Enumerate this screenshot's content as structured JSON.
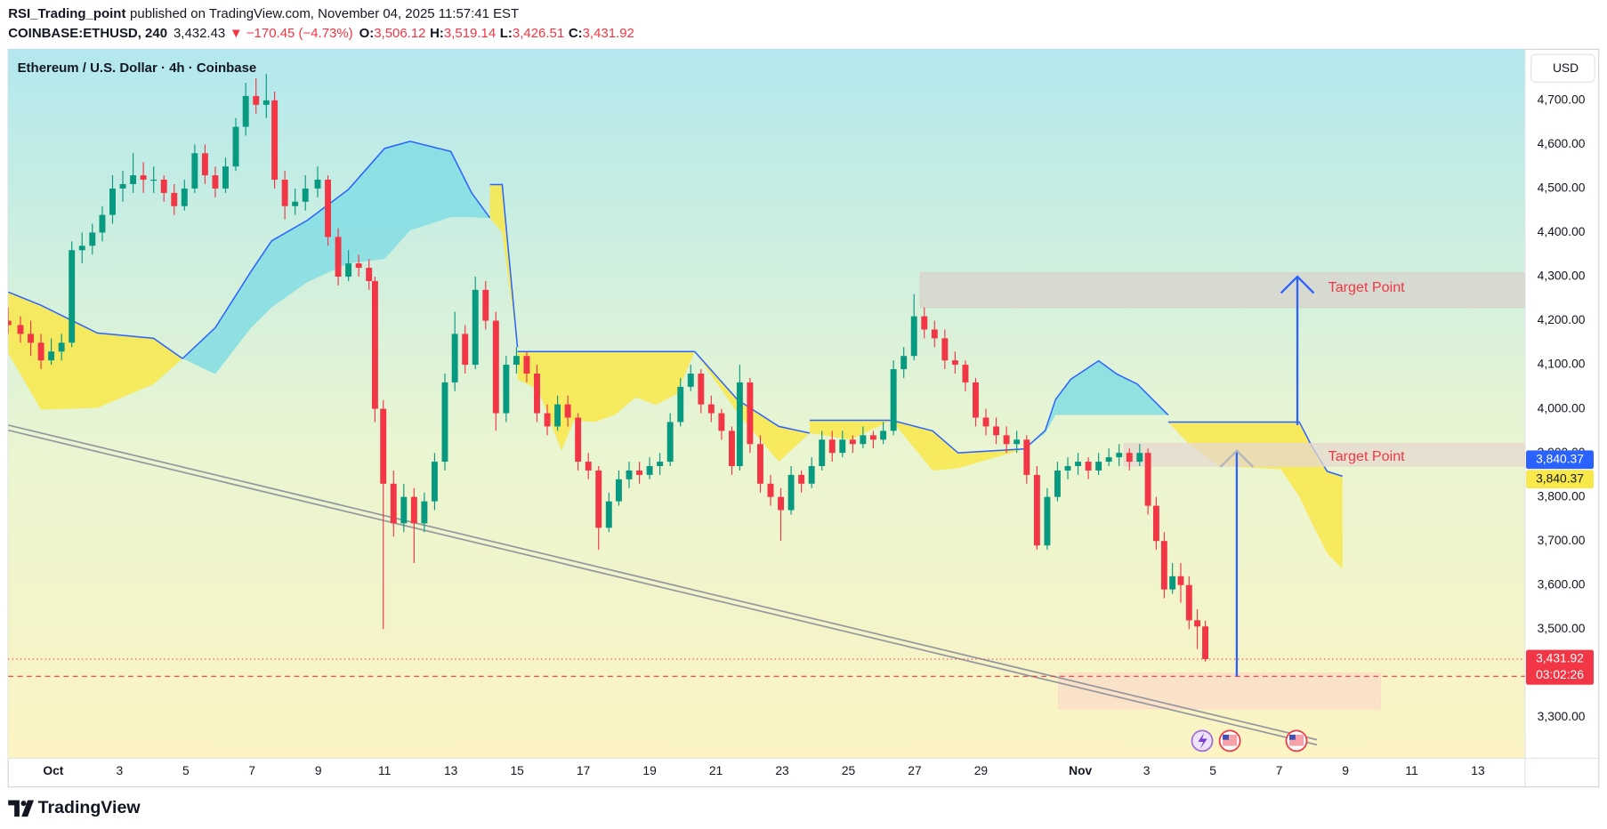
{
  "header": {
    "author": "RSI_Trading_point",
    "published": "published on TradingView.com, November 04, 2025 11:57:41 EST",
    "symbol": "COINBASE:ETHUSD, 240",
    "last": "3,432.43",
    "change": "▼ −170.45 (−4.73%)",
    "ohlc": [
      {
        "key": "O:",
        "value": "3,506.12"
      },
      {
        "key": "H:",
        "value": "3,519.14"
      },
      {
        "key": "L:",
        "value": "3,426.51"
      },
      {
        "key": "C:",
        "value": "3,431.92"
      }
    ]
  },
  "currency": "USD",
  "footer": {
    "brand": "TradingView"
  },
  "chart_data": {
    "type": "candlestick",
    "title": "Ethereum / U.S. Dollar · 4h · Coinbase",
    "up_color": "#089981",
    "down_color": "#f23645",
    "xlim": [
      -1.36,
      44.42
    ],
    "ylim": [
      3207,
      4816
    ],
    "grid": false,
    "xticks": [
      {
        "value": 0,
        "label": "Oct"
      },
      {
        "value": 2,
        "label": "3"
      },
      {
        "value": 4,
        "label": "5"
      },
      {
        "value": 6,
        "label": "7"
      },
      {
        "value": 8,
        "label": "9"
      },
      {
        "value": 10,
        "label": "11"
      },
      {
        "value": 12,
        "label": "13"
      },
      {
        "value": 14,
        "label": "15"
      },
      {
        "value": 16,
        "label": "17"
      },
      {
        "value": 18,
        "label": "19"
      },
      {
        "value": 20,
        "label": "21"
      },
      {
        "value": 22,
        "label": "23"
      },
      {
        "value": 24,
        "label": "25"
      },
      {
        "value": 26,
        "label": "27"
      },
      {
        "value": 28,
        "label": "29"
      },
      {
        "value": 31,
        "label": "Nov"
      },
      {
        "value": 33,
        "label": "3"
      },
      {
        "value": 35,
        "label": "5"
      },
      {
        "value": 37,
        "label": "7"
      },
      {
        "value": 39,
        "label": "9"
      },
      {
        "value": 41,
        "label": "11"
      },
      {
        "value": 43,
        "label": "13"
      }
    ],
    "yticks": [
      {
        "value": 3300,
        "label": "3,300.00"
      },
      {
        "value": 3500,
        "label": "3,500.00"
      },
      {
        "value": 3600,
        "label": "3,600.00"
      },
      {
        "value": 3700,
        "label": "3,700.00"
      },
      {
        "value": 3800,
        "label": "3,800.00"
      },
      {
        "value": 3900,
        "label": "3,900.00"
      },
      {
        "value": 4000,
        "label": "4,000.00"
      },
      {
        "value": 4100,
        "label": "4,100.00"
      },
      {
        "value": 4200,
        "label": "4,200.00"
      },
      {
        "value": 4300,
        "label": "4,300.00"
      },
      {
        "value": 4400,
        "label": "4,400.00"
      },
      {
        "value": 4500,
        "label": "4,500.00"
      },
      {
        "value": 4600,
        "label": "4,600.00"
      },
      {
        "value": 4700,
        "label": "4,700.00"
      }
    ],
    "x": [
      -1.36,
      -0.99,
      -0.68,
      -0.37,
      -0.06,
      0.25,
      0.56,
      0.87,
      1.18,
      1.48,
      1.79,
      2.1,
      2.41,
      2.72,
      3.03,
      3.34,
      3.65,
      3.96,
      4.27,
      4.58,
      4.89,
      5.2,
      5.51,
      5.81,
      6.12,
      6.43,
      6.68,
      6.99,
      7.3,
      7.61,
      7.98,
      8.29,
      8.6,
      8.91,
      9.22,
      9.53,
      9.71,
      9.96,
      10.27,
      10.58,
      10.89,
      11.2,
      11.51,
      11.82,
      12.12,
      12.43,
      12.74,
      13.05,
      13.36,
      13.67,
      13.98,
      14.29,
      14.6,
      14.91,
      15.22,
      15.53,
      15.84,
      16.15,
      16.46,
      16.77,
      17.07,
      17.38,
      17.69,
      18.0,
      18.31,
      18.62,
      18.93,
      19.24,
      19.55,
      19.86,
      20.17,
      20.48,
      20.72,
      21.03,
      21.34,
      21.65,
      21.96,
      22.27,
      22.58,
      22.89,
      23.2,
      23.51,
      23.82,
      24.13,
      24.44,
      24.75,
      25.05,
      25.36,
      25.67,
      25.98,
      26.29,
      26.6,
      26.91,
      27.22,
      27.53,
      27.84,
      28.15,
      28.46,
      28.77,
      29.08,
      29.38,
      29.69,
      30.0,
      30.31,
      30.62,
      30.93,
      31.24,
      31.55,
      31.86,
      32.17,
      32.48,
      32.79,
      33.04,
      33.29,
      33.53,
      33.78,
      34.03,
      34.28,
      34.53,
      34.77
    ],
    "candles": [
      [
        4200,
        4230,
        4170,
        4190
      ],
      [
        4190,
        4210,
        4150,
        4170
      ],
      [
        4170,
        4200,
        4120,
        4150
      ],
      [
        4150,
        4170,
        4090,
        4110
      ],
      [
        4110,
        4160,
        4100,
        4130
      ],
      [
        4130,
        4170,
        4110,
        4150
      ],
      [
        4150,
        4380,
        4140,
        4360
      ],
      [
        4360,
        4400,
        4330,
        4370
      ],
      [
        4370,
        4420,
        4350,
        4400
      ],
      [
        4400,
        4460,
        4380,
        4440
      ],
      [
        4440,
        4530,
        4420,
        4500
      ],
      [
        4500,
        4540,
        4470,
        4510
      ],
      [
        4510,
        4580,
        4490,
        4530
      ],
      [
        4530,
        4560,
        4490,
        4520
      ],
      [
        4520,
        4550,
        4490,
        4520
      ],
      [
        4520,
        4530,
        4470,
        4490
      ],
      [
        4490,
        4510,
        4440,
        4460
      ],
      [
        4460,
        4520,
        4450,
        4500
      ],
      [
        4500,
        4600,
        4490,
        4580
      ],
      [
        4580,
        4600,
        4510,
        4530
      ],
      [
        4530,
        4550,
        4480,
        4500
      ],
      [
        4500,
        4570,
        4490,
        4550
      ],
      [
        4550,
        4660,
        4540,
        4640
      ],
      [
        4640,
        4740,
        4620,
        4710
      ],
      [
        4710,
        4750,
        4670,
        4690
      ],
      [
        4690,
        4760,
        4660,
        4700
      ],
      [
        4700,
        4720,
        4500,
        4520
      ],
      [
        4520,
        4540,
        4430,
        4460
      ],
      [
        4460,
        4500,
        4440,
        4470
      ],
      [
        4470,
        4530,
        4450,
        4500
      ],
      [
        4500,
        4550,
        4480,
        4520
      ],
      [
        4520,
        4530,
        4370,
        4390
      ],
      [
        4390,
        4410,
        4280,
        4300
      ],
      [
        4300,
        4360,
        4290,
        4330
      ],
      [
        4330,
        4350,
        4300,
        4320
      ],
      [
        4320,
        4340,
        4270,
        4290
      ],
      [
        4290,
        4300,
        3970,
        4000
      ],
      [
        4000,
        4020,
        3500,
        3830
      ],
      [
        3830,
        3860,
        3710,
        3740
      ],
      [
        3740,
        3830,
        3720,
        3800
      ],
      [
        3800,
        3820,
        3650,
        3740
      ],
      [
        3740,
        3810,
        3720,
        3790
      ],
      [
        3790,
        3900,
        3770,
        3880
      ],
      [
        3880,
        4080,
        3860,
        4060
      ],
      [
        4060,
        4220,
        4040,
        4170
      ],
      [
        4170,
        4190,
        4080,
        4100
      ],
      [
        4100,
        4300,
        4090,
        4270
      ],
      [
        4270,
        4290,
        4180,
        4200
      ],
      [
        4200,
        4220,
        3950,
        3990
      ],
      [
        3990,
        4120,
        3970,
        4100
      ],
      [
        4100,
        4140,
        4080,
        4120
      ],
      [
        4120,
        4130,
        4060,
        4080
      ],
      [
        4080,
        4100,
        3970,
        3990
      ],
      [
        3990,
        4010,
        3940,
        3960
      ],
      [
        3960,
        4030,
        3950,
        4010
      ],
      [
        4010,
        4030,
        3960,
        3980
      ],
      [
        3980,
        3990,
        3860,
        3880
      ],
      [
        3880,
        3900,
        3840,
        3860
      ],
      [
        3860,
        3870,
        3680,
        3730
      ],
      [
        3730,
        3810,
        3720,
        3790
      ],
      [
        3790,
        3860,
        3780,
        3840
      ],
      [
        3840,
        3880,
        3820,
        3860
      ],
      [
        3860,
        3880,
        3830,
        3850
      ],
      [
        3850,
        3890,
        3840,
        3870
      ],
      [
        3870,
        3900,
        3850,
        3880
      ],
      [
        3880,
        3990,
        3870,
        3970
      ],
      [
        3970,
        4070,
        3960,
        4050
      ],
      [
        4050,
        4100,
        4040,
        4080
      ],
      [
        4080,
        4090,
        3990,
        4010
      ],
      [
        4010,
        4030,
        3970,
        3990
      ],
      [
        3990,
        4000,
        3930,
        3950
      ],
      [
        3950,
        3960,
        3850,
        3870
      ],
      [
        3870,
        4100,
        3860,
        4060
      ],
      [
        4060,
        4070,
        3900,
        3920
      ],
      [
        3920,
        3940,
        3810,
        3830
      ],
      [
        3830,
        3850,
        3780,
        3800
      ],
      [
        3800,
        3820,
        3700,
        3770
      ],
      [
        3770,
        3870,
        3760,
        3850
      ],
      [
        3850,
        3860,
        3810,
        3830
      ],
      [
        3830,
        3890,
        3820,
        3870
      ],
      [
        3870,
        3950,
        3860,
        3930
      ],
      [
        3930,
        3950,
        3880,
        3900
      ],
      [
        3900,
        3950,
        3890,
        3930
      ],
      [
        3930,
        3940,
        3900,
        3920
      ],
      [
        3920,
        3960,
        3910,
        3940
      ],
      [
        3940,
        3950,
        3910,
        3930
      ],
      [
        3930,
        3970,
        3920,
        3950
      ],
      [
        3950,
        4110,
        3940,
        4090
      ],
      [
        4090,
        4140,
        4070,
        4120
      ],
      [
        4120,
        4260,
        4110,
        4210
      ],
      [
        4210,
        4230,
        4160,
        4180
      ],
      [
        4180,
        4200,
        4140,
        4160
      ],
      [
        4160,
        4180,
        4090,
        4110
      ],
      [
        4110,
        4130,
        4080,
        4100
      ],
      [
        4100,
        4110,
        4040,
        4060
      ],
      [
        4060,
        4070,
        3960,
        3980
      ],
      [
        3980,
        4000,
        3940,
        3960
      ],
      [
        3960,
        3980,
        3920,
        3940
      ],
      [
        3940,
        3960,
        3900,
        3920
      ],
      [
        3920,
        3950,
        3900,
        3930
      ],
      [
        3930,
        3940,
        3830,
        3850
      ],
      [
        3850,
        3870,
        3680,
        3690
      ],
      [
        3690,
        3820,
        3680,
        3800
      ],
      [
        3800,
        3880,
        3790,
        3860
      ],
      [
        3860,
        3890,
        3840,
        3870
      ],
      [
        3870,
        3900,
        3850,
        3880
      ],
      [
        3880,
        3890,
        3840,
        3860
      ],
      [
        3860,
        3900,
        3850,
        3880
      ],
      [
        3880,
        3910,
        3870,
        3890
      ],
      [
        3890,
        3920,
        3870,
        3900
      ],
      [
        3900,
        3910,
        3860,
        3880
      ],
      [
        3880,
        3920,
        3870,
        3900
      ],
      [
        3900,
        3910,
        3760,
        3780
      ],
      [
        3780,
        3800,
        3680,
        3700
      ],
      [
        3700,
        3720,
        3570,
        3590
      ],
      [
        3590,
        3650,
        3580,
        3620
      ],
      [
        3620,
        3650,
        3560,
        3600
      ],
      [
        3600,
        3620,
        3500,
        3520
      ],
      [
        3520,
        3545,
        3455,
        3506
      ],
      [
        3506.12,
        3519.14,
        3426.51,
        3431.92
      ]
    ],
    "cloud_line_color": "#2962ff",
    "cloud": [
      {
        "color": "#f9e84a",
        "x": [
          -1.36,
          -0.37,
          1.33,
          3.03,
          3.9
        ],
        "upper": [
          4265,
          4235,
          4172,
          4160,
          4114
        ],
        "lower": [
          4126,
          3998,
          4002,
          4056,
          4114
        ]
      },
      {
        "color": "#82dde3",
        "x": [
          3.9,
          4.89,
          5.97,
          6.59,
          7.67,
          8.91,
          10.0,
          10.77,
          12.0,
          12.62,
          13.18
        ],
        "upper": [
          4114,
          4184,
          4312,
          4381,
          4428,
          4498,
          4591,
          4607,
          4584,
          4491,
          4433
        ],
        "lower": [
          4114,
          4079,
          4184,
          4230,
          4288,
          4330,
          4340,
          4405,
          4435,
          4435,
          4433
        ]
      },
      {
        "color": "#f9e84a",
        "x": [
          13.18,
          13.55,
          14.01
        ],
        "upper": [
          4509,
          4509,
          4140
        ],
        "lower": [
          4433,
          4400,
          4140
        ]
      },
      {
        "color": "#f9e84a",
        "x": [
          14.01,
          14.63,
          15.34,
          15.71,
          16.33,
          16.95,
          17.57,
          18.19,
          18.81,
          19.36
        ],
        "upper": [
          4130,
          4130,
          4130,
          4130,
          4130,
          4130,
          4130,
          4130,
          4130,
          4130
        ],
        "lower": [
          4067,
          4044,
          3905,
          3974,
          3970,
          3986,
          4026,
          4009,
          4033,
          4130
        ]
      },
      {
        "color": "#f9e84a",
        "x": [
          19.36,
          20.66,
          21.9,
          22.83
        ],
        "upper": [
          4130,
          4020,
          3960,
          3945
        ],
        "lower": [
          4130,
          3990,
          3880,
          3945
        ]
      },
      {
        "color": "#f9e84a",
        "x": [
          22.83,
          24.07,
          25.3
        ],
        "upper": [
          3974,
          3974,
          3974
        ],
        "lower": [
          3945,
          3930,
          3974
        ]
      },
      {
        "color": "#f9e84a",
        "x": [
          25.3,
          26.54,
          27.31,
          29.32
        ],
        "upper": [
          3974,
          3950,
          3900,
          3909
        ],
        "lower": [
          3974,
          3860,
          3865,
          3909
        ]
      },
      {
        "color": "#82dde3",
        "x": [
          29.32,
          29.94,
          30.25,
          30.71,
          31.55,
          32.1,
          32.72,
          33.65
        ],
        "upper": [
          3909,
          3951,
          4021,
          4067,
          4109,
          4079,
          4056,
          3986
        ],
        "lower": [
          3909,
          3945,
          3986,
          3986,
          3986,
          3986,
          3986,
          3986
        ]
      },
      {
        "color": "#f9e84a",
        "x": [
          33.65,
          34.27,
          35.2,
          37.05,
          37.61,
          37.98,
          38.45,
          38.91
        ],
        "upper": [
          3970,
          3970,
          3970,
          3970,
          3970,
          3916,
          3858,
          3847
        ],
        "lower": [
          3970,
          3921,
          3870,
          3863,
          3800,
          3742,
          3672,
          3637
        ]
      }
    ],
    "trendline": {
      "x": [
        -1.36,
        38.14
      ],
      "y": [
        3963,
        3249
      ],
      "color": "#9598a1"
    },
    "zones": [
      {
        "x": [
          26.17,
          44.42
        ],
        "y": [
          4230,
          4309
        ],
        "color": "#d8d3cc"
      },
      {
        "x": [
          32.32,
          44.42
        ],
        "y": [
          3870,
          3921
        ],
        "color": "#e6d8cf"
      },
      {
        "x": [
          30.34,
          40.06
        ],
        "y": [
          3319,
          3400
        ],
        "color": "#fbdcc8"
      }
    ],
    "arrows": [
      {
        "x": 37.55,
        "from": 3963,
        "to": 4300,
        "color": "#2962ff",
        "head_color": "#2962ff"
      },
      {
        "x": 35.72,
        "from": 3393,
        "to": 3905,
        "color": "#2962ff",
        "head_color": "#b2b5be"
      }
    ],
    "annotations": [
      {
        "text": "Target Point",
        "x": 38.48,
        "y": 4274,
        "color": "#f23645"
      },
      {
        "text": "Target Point",
        "x": 38.48,
        "y": 3891,
        "color": "#f23645"
      }
    ],
    "price_lines": [
      {
        "value": 3431.92,
        "dash": "1 3",
        "color": "#f23645"
      },
      {
        "value": 3393,
        "dash": "5 4",
        "color": "#f23645"
      }
    ],
    "price_labels": [
      {
        "value": 3840.37,
        "label": "3,840.37",
        "color": "#2962ff",
        "text_color": "#ffffff"
      },
      {
        "value": 3840.37,
        "label": "3,840.37",
        "color": "#f9e84a",
        "text_color": "#131722"
      },
      {
        "value": 3431.92,
        "label": "3,431.92",
        "color": "#f23645",
        "text_color": "#ffffff",
        "countdown": "03:02:26"
      }
    ]
  }
}
